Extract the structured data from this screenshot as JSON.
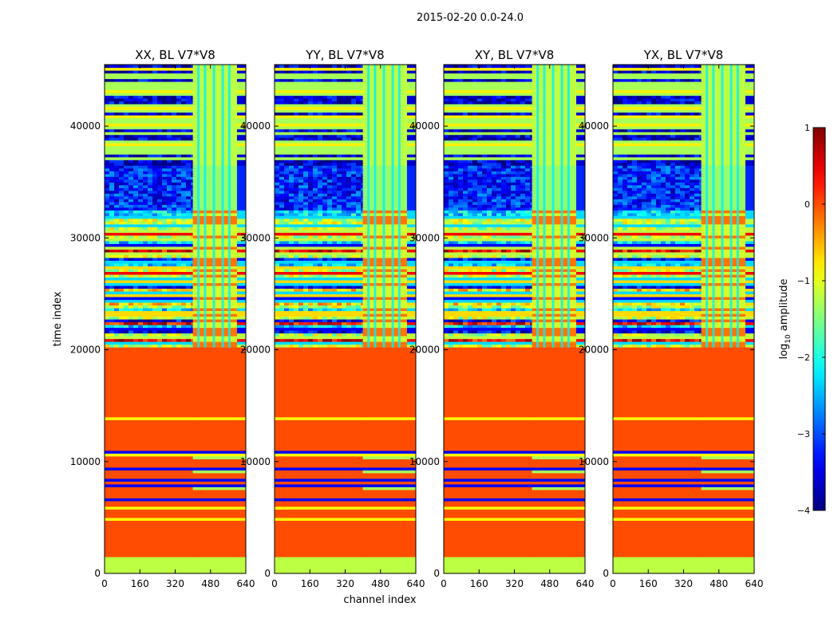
{
  "figure": {
    "suptitle": "2015-02-20 0.0-24.0"
  },
  "chart_data": {
    "type": "heatmap",
    "title": "2015-02-20 0.0-24.0",
    "xlabel": "channel index",
    "ylabel": "time index",
    "xlim": [
      0,
      640
    ],
    "ylim": [
      0,
      45500
    ],
    "xticks": [
      0,
      160,
      320,
      480,
      640
    ],
    "yticks": [
      0,
      10000,
      20000,
      30000,
      40000
    ],
    "colorbar": {
      "label": "log₁₀ amplitude",
      "label_base": "log",
      "label_sub": "10",
      "label_rest": " amplitude",
      "range": [
        -4,
        1
      ],
      "ticks": [
        "1",
        "0",
        "−1",
        "−2",
        "−3",
        "−4"
      ],
      "tick_values": [
        1,
        0,
        -1,
        -2,
        -3,
        -4
      ],
      "colormap": "jet"
    },
    "panels": [
      {
        "name": "XX, BL V7*V8",
        "wide_channel_band": [
          400,
          600
        ],
        "fill_color": "#ff6a00",
        "high_channel_color": "#a6ff57"
      },
      {
        "name": "YY, BL V7*V8",
        "wide_channel_band": [
          400,
          600
        ],
        "fill_color": "#ff6a00",
        "high_channel_color": "#a6ff57"
      },
      {
        "name": "XY, BL V7*V8",
        "wide_channel_band": [
          400,
          600
        ],
        "fill_color": "#ff6a00",
        "high_channel_color": "#a6ff57"
      },
      {
        "name": "YX, BL V7*V8",
        "wide_channel_band": [
          400,
          600
        ],
        "fill_color": "#ff6a00",
        "high_channel_color": "#a6ff57"
      }
    ],
    "time_regions": [
      {
        "from": 0,
        "to": 1400,
        "level": -1.2,
        "description": "green"
      },
      {
        "from": 1400,
        "to": 20200,
        "level": 0.0,
        "description": "orange with thin yellow/blue rows"
      },
      {
        "from": 20200,
        "to": 32500,
        "level": -2.0,
        "description": "mixed striped rows"
      },
      {
        "from": 32500,
        "to": 36500,
        "level": -3.2,
        "description": "blue noisy block"
      },
      {
        "from": 36500,
        "to": 45500,
        "level": -1.5,
        "description": "green/blue striped rows"
      }
    ]
  }
}
